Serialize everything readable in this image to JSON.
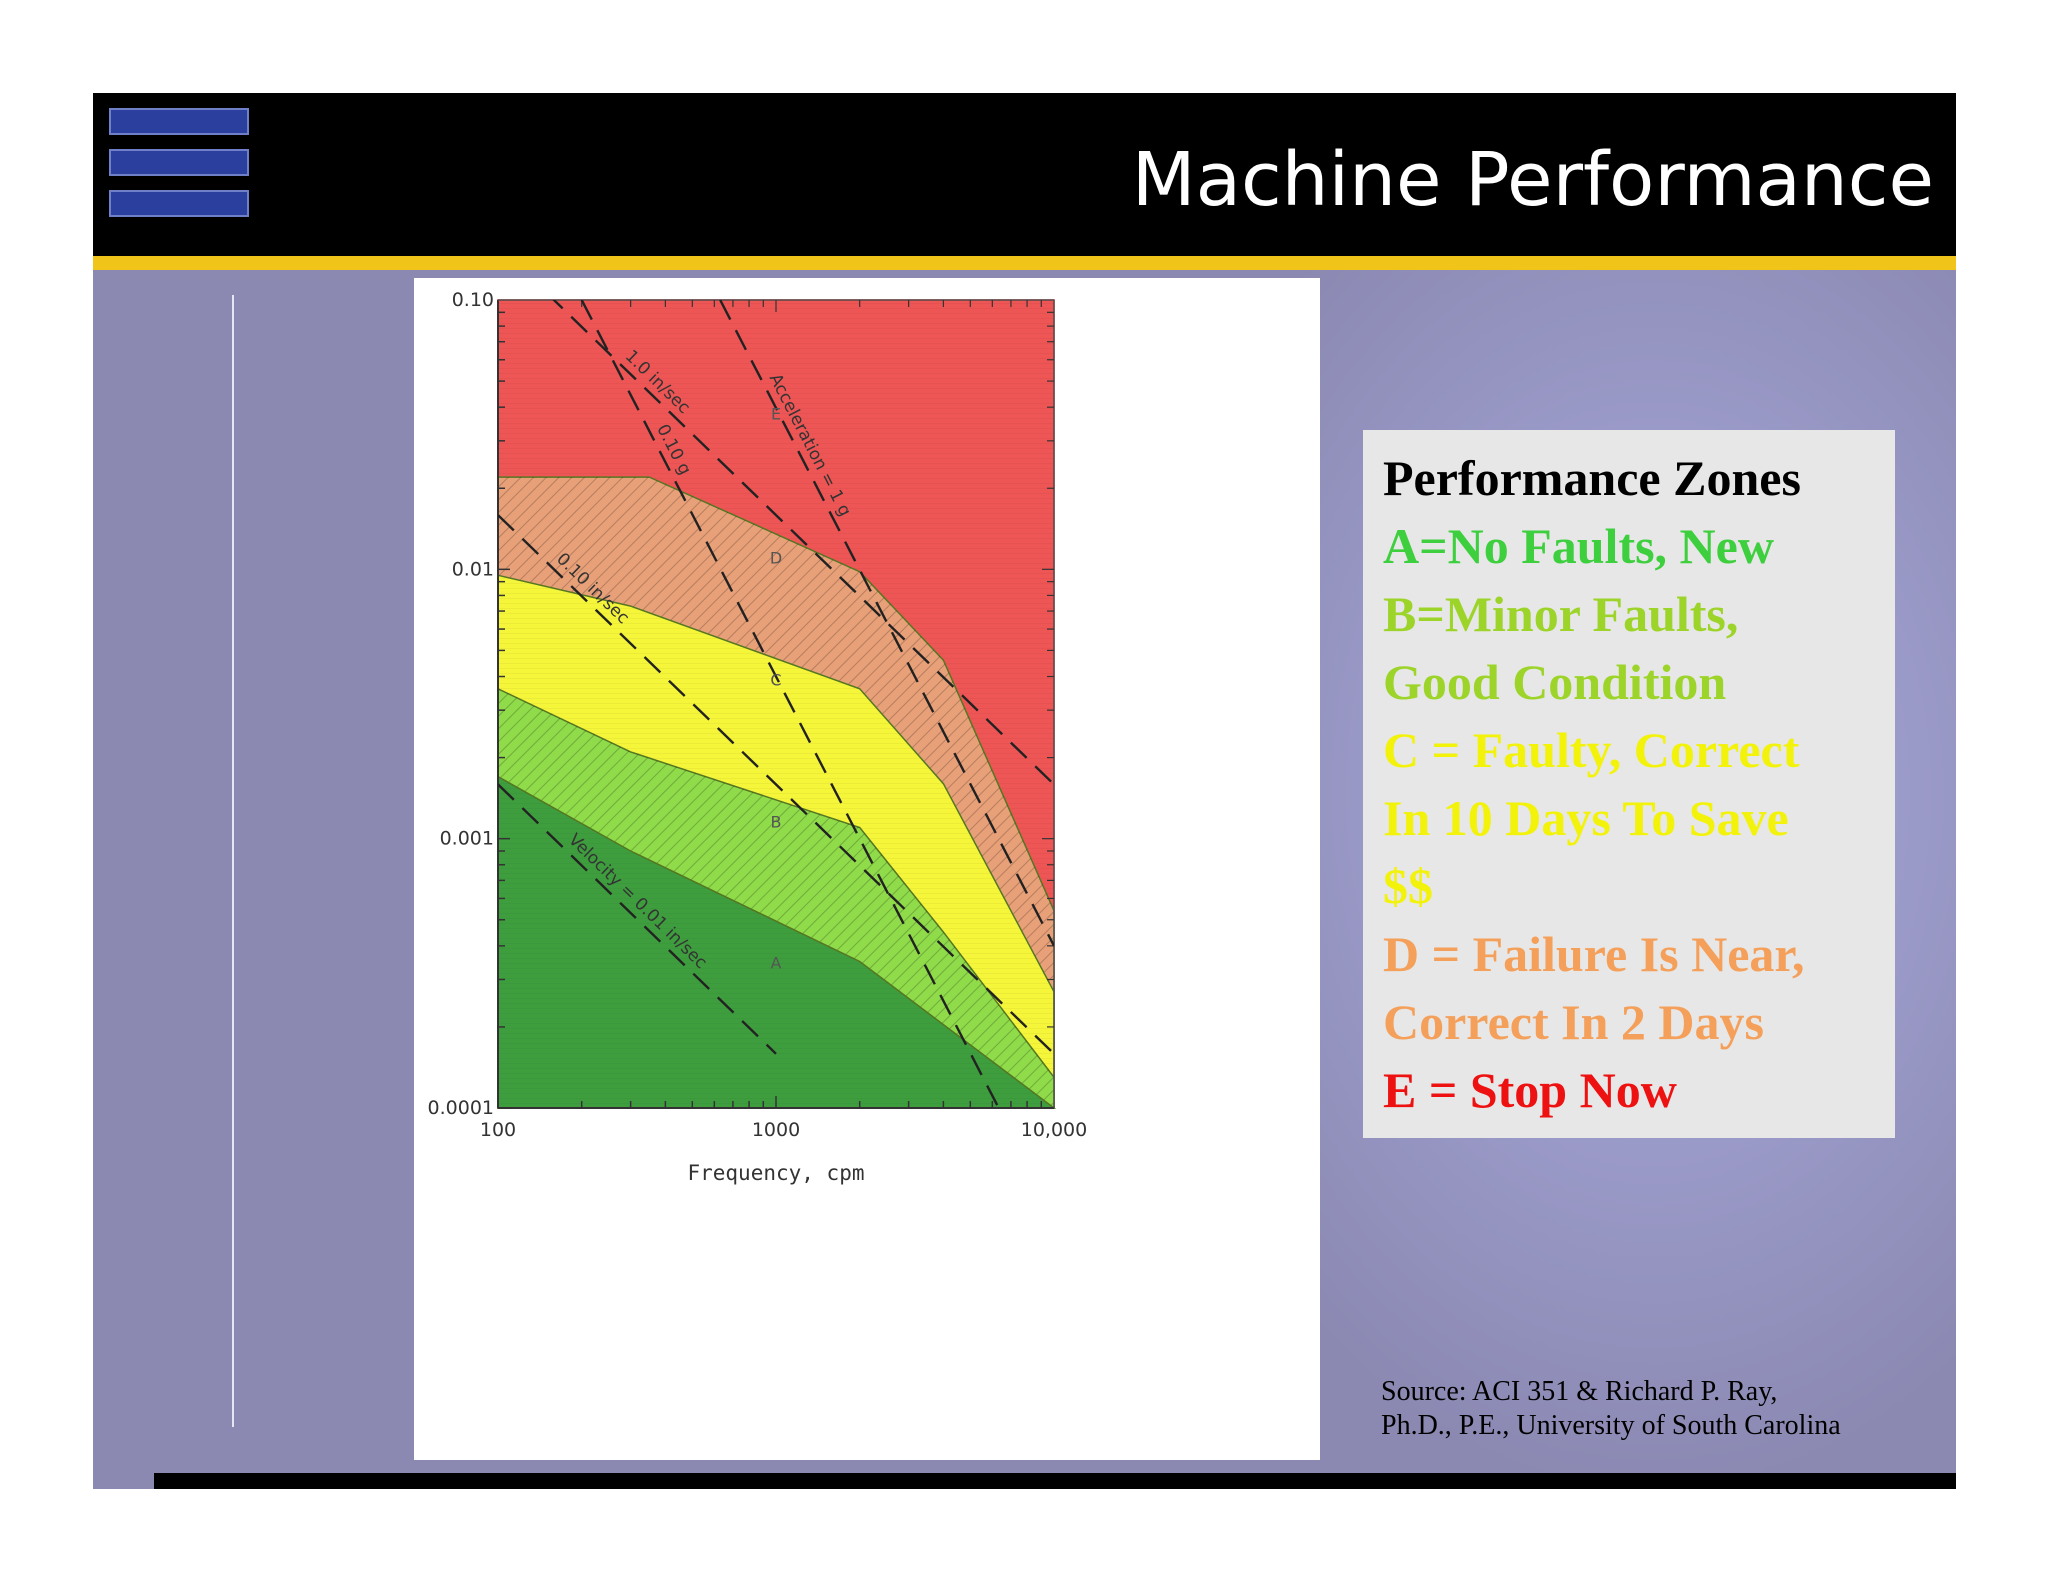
{
  "slide": {
    "title": "Machine Performance",
    "source_line1": "Source: ACI 351 & Richard P. Ray,",
    "source_line2": "Ph.D., P.E., University of South Carolina"
  },
  "legend": {
    "heading": "Performance Zones",
    "lines": [
      {
        "text": "A=No Faults, New",
        "color": "#3ecf3e"
      },
      {
        "text": "B=Minor Faults,",
        "color": "#9dd42a"
      },
      {
        "text": "Good Condition",
        "color": "#9dd42a"
      },
      {
        "text": "C = Faulty, Correct",
        "color": "#f2f20a"
      },
      {
        "text": "In 10 Days To Save",
        "color": "#f2f20a"
      },
      {
        "text": "$$",
        "color": "#f2f20a"
      },
      {
        "text": "D = Failure Is Near,",
        "color": "#f4a05a"
      },
      {
        "text": "Correct In 2 Days",
        "color": "#f4a05a"
      },
      {
        "text": "E = Stop Now",
        "color": "#ee1111"
      }
    ]
  },
  "chart_data": {
    "type": "area",
    "xlabel": "Frequency, cpm",
    "ylabel": "",
    "xscale": "log",
    "yscale": "log",
    "xlim": [
      100,
      10000
    ],
    "ylim": [
      0.0001,
      0.1
    ],
    "x_ticks": [
      "100",
      "1000",
      "10,000"
    ],
    "y_ticks": [
      "0.10",
      "0.01",
      "0.001",
      "0.0001"
    ],
    "zones": [
      {
        "name": "A",
        "color": "#3e9e3e",
        "upper": [
          [
            100,
            0.0017
          ],
          [
            300,
            0.0009
          ],
          [
            2000,
            0.00035
          ],
          [
            10000,
            8.5e-05
          ]
        ]
      },
      {
        "name": "B",
        "color": "#8fdb4a",
        "upper": [
          [
            100,
            0.0036
          ],
          [
            300,
            0.0021
          ],
          [
            2000,
            0.0011
          ],
          [
            4000,
            0.00045
          ],
          [
            10000,
            0.00013
          ]
        ]
      },
      {
        "name": "C",
        "color": "#f5f53a",
        "upper": [
          [
            100,
            0.0095
          ],
          [
            300,
            0.0073
          ],
          [
            2000,
            0.0036
          ],
          [
            4000,
            0.0016
          ],
          [
            10000,
            0.00027
          ]
        ]
      },
      {
        "name": "D",
        "color": "#e8a078",
        "upper": [
          [
            100,
            0.022
          ],
          [
            350,
            0.022
          ],
          [
            2000,
            0.0098
          ],
          [
            4000,
            0.0046
          ],
          [
            10000,
            0.00054
          ]
        ]
      },
      {
        "name": "E",
        "color": "#ee5555",
        "upper": [
          [
            100,
            0.1
          ],
          [
            10000,
            0.1
          ]
        ]
      }
    ],
    "reference_lines": [
      {
        "label": "Velocity = 0.01 in/sec",
        "points": [
          [
            100,
            0.00159
          ],
          [
            1000,
            0.000159
          ]
        ]
      },
      {
        "label": "0.10 in/sec",
        "points": [
          [
            100,
            0.0159
          ],
          [
            3000,
            0.00053
          ],
          [
            10000,
            0.000159
          ]
        ]
      },
      {
        "label": "1.0 in/sec",
        "points": [
          [
            100,
            0.159
          ],
          [
            1000,
            0.0159
          ],
          [
            10000,
            0.00159
          ]
        ]
      },
      {
        "label": "0.10 g",
        "points": [
          [
            200,
            0.1
          ],
          [
            10000,
            4e-05
          ]
        ]
      },
      {
        "label": "Acceleration = 1 g",
        "points": [
          [
            630,
            0.1
          ],
          [
            10000,
            0.0004
          ]
        ]
      }
    ]
  }
}
